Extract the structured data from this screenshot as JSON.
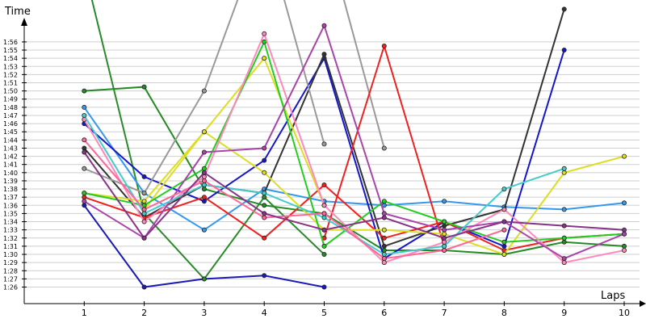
{
  "chart_data": {
    "type": "line",
    "xlabel": "Laps",
    "ylabel": "Time",
    "x": [
      1,
      2,
      3,
      4,
      5,
      6,
      7,
      8,
      9,
      10
    ],
    "ylim": [
      84.5,
      118.5
    ],
    "xlim": [
      0,
      10
    ],
    "grid": "horizontal",
    "legend": "none",
    "y_tick_labels": [
      "1:26",
      "1:27",
      "1:28",
      "1:29",
      "1:30",
      "1:31",
      "1:32",
      "1:33",
      "1:34",
      "1:35",
      "1:36",
      "1:37",
      "1:38",
      "1:39",
      "1:40",
      "1:41",
      "1:42",
      "1:43",
      "1:44",
      "1:45",
      "1:46",
      "1:47",
      "1:48",
      "1:49",
      "1:50",
      "1:51",
      "1:52",
      "1:53",
      "1:54",
      "1:55",
      "1:56"
    ],
    "series": [
      {
        "color": "#1a1ab4",
        "values": [
          96.0,
          86.0,
          87.0,
          87.4,
          86.0,
          null,
          null,
          null,
          null,
          null
        ]
      },
      {
        "color": "#2a8a2a",
        "values": [
          125.0,
          95.0,
          87.0,
          97.0,
          90.0,
          null,
          null,
          null,
          null,
          null
        ]
      },
      {
        "color": "#228b22",
        "values": [
          110.0,
          110.5,
          98.0,
          96.0,
          95.0,
          90.5,
          90.5,
          90.0,
          91.5,
          91.0
        ]
      },
      {
        "color": "#3399ee",
        "values": [
          108.0,
          97.5,
          93.0,
          98.0,
          96.5,
          96.0,
          96.5,
          95.8,
          95.5,
          96.3
        ]
      },
      {
        "color": "#1515cc",
        "values": [
          106.0,
          99.5,
          96.5,
          101.5,
          114.0,
          89.5,
          94.0,
          91.0,
          115.0,
          null
        ]
      },
      {
        "color": "#333333",
        "values": [
          103.0,
          94.5,
          98.5,
          97.5,
          114.5,
          91.0,
          93.5,
          95.5,
          120.0,
          null
        ]
      },
      {
        "color": "#999999",
        "values": [
          100.5,
          97.5,
          110.0,
          130.0,
          103.5,
          null,
          null,
          null,
          null,
          null
        ]
      },
      {
        "color": "#999999",
        "values": [
          null,
          null,
          null,
          null,
          130.0,
          103.0,
          null,
          null,
          null,
          null
        ]
      },
      {
        "color": "#ee2020",
        "values": [
          97.0,
          94.5,
          97.0,
          92.0,
          98.5,
          92.0,
          94.0,
          90.5,
          92.0,
          92.5
        ]
      },
      {
        "color": "#ee2020",
        "values": [
          null,
          null,
          null,
          null,
          92.0,
          115.5,
          91.0,
          null,
          null,
          null
        ]
      },
      {
        "color": "#dddd22",
        "values": [
          97.5,
          96.5,
          105.0,
          100.0,
          93.0,
          93.0,
          92.5,
          90.0,
          100.0,
          102.0
        ]
      },
      {
        "color": "#dddd22",
        "values": [
          null,
          95.5,
          105.0,
          114.0,
          96.0,
          null,
          null,
          null,
          null,
          null
        ]
      },
      {
        "color": "#22cc22",
        "values": [
          97.5,
          96.0,
          100.5,
          116.0,
          91.0,
          96.5,
          94.0,
          91.5,
          92.0,
          92.5
        ]
      },
      {
        "color": "#ff88bb",
        "values": [
          106.5,
          94.0,
          99.5,
          117.0,
          96.0,
          89.0,
          91.5,
          95.5,
          89.0,
          90.5
        ]
      },
      {
        "color": "#aa44aa",
        "values": [
          96.5,
          92.0,
          102.5,
          103.0,
          118.0,
          95.0,
          93.0,
          94.0,
          89.5,
          92.5
        ]
      },
      {
        "color": "#44cccc",
        "values": [
          107.0,
          95.0,
          98.5,
          97.5,
          94.5,
          90.0,
          91.0,
          98.0,
          100.5,
          null
        ]
      },
      {
        "color": "#ff6699",
        "values": [
          104.0,
          95.5,
          99.0,
          94.5,
          95.0,
          89.5,
          90.5,
          93.0,
          null,
          null
        ]
      },
      {
        "color": "#883388",
        "values": [
          102.5,
          92.0,
          100.0,
          95.0,
          93.0,
          94.5,
          92.0,
          94.0,
          93.5,
          93.0
        ]
      }
    ]
  }
}
